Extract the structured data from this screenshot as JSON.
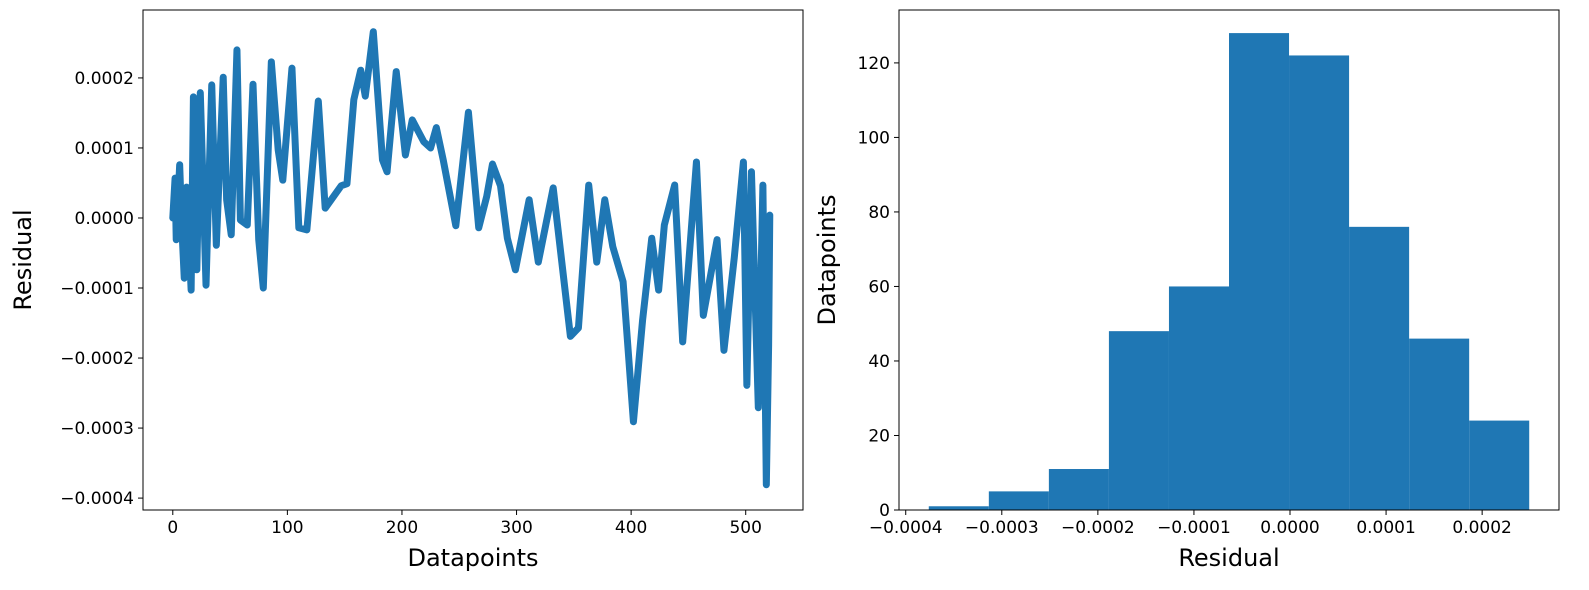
{
  "chart_data": [
    {
      "type": "line",
      "xlabel": "Datapoints",
      "ylabel": "Residual",
      "x": [
        0,
        2,
        3,
        6,
        8,
        10,
        12,
        16,
        18,
        21,
        24,
        29,
        34,
        38,
        44,
        47,
        51,
        56,
        59,
        65,
        70,
        75,
        79,
        86,
        92,
        96,
        104,
        110,
        117,
        127,
        133,
        147,
        152,
        158,
        164,
        168,
        175,
        183,
        187,
        195,
        203,
        209,
        219,
        225,
        230,
        236,
        247,
        258,
        267,
        274,
        279,
        286,
        292,
        299,
        311,
        319,
        332,
        347,
        354,
        363,
        370,
        377,
        384,
        393,
        402,
        410,
        418,
        424,
        429,
        438,
        445,
        457,
        463,
        475,
        481,
        490,
        498,
        501,
        505,
        511,
        515,
        518,
        520,
        521
      ],
      "series": [
        {
          "color": "#1f77b4",
          "values": [
            0,
            5.7e-05,
            -3.1e-05,
            7.6e-05,
            -1.7e-05,
            -8.6e-05,
            4.4e-05,
            -0.000103,
            0.000173,
            -7.4e-05,
            0.000179,
            -9.6e-05,
            0.00019,
            -3.9e-05,
            0.000201,
            2.6e-05,
            -2.4e-05,
            0.00024,
            -3e-06,
            -1e-05,
            0.000191,
            -3.1e-05,
            -0.0001,
            0.000223,
            9.7e-05,
            5.4e-05,
            0.000214,
            -1.4e-05,
            -1.7e-05,
            0.000167,
            1.4e-05,
            4.6e-05,
            4.9e-05,
            0.000169,
            0.000211,
            0.000174,
            0.000266,
            8.3e-05,
            6.6e-05,
            0.000209,
            9e-05,
            0.00014,
            0.000109,
            0.0001,
            0.000129,
            8.3e-05,
            -1.1e-05,
            0.000151,
            -1.4e-05,
            3.1e-05,
            7.7e-05,
            4.6e-05,
            -2.9e-05,
            -7.4e-05,
            2.6e-05,
            -6.3e-05,
            4.3e-05,
            -0.000169,
            -0.000157,
            4.7e-05,
            -6.3e-05,
            2.6e-05,
            -4.1e-05,
            -9.1e-05,
            -0.000291,
            -0.000146,
            -2.9e-05,
            -0.000103,
            -1e-05,
            4.7e-05,
            -0.000177,
            8e-05,
            -0.000139,
            -3.1e-05,
            -0.000189,
            -5.7e-05,
            8e-05,
            -0.000239,
            6.6e-05,
            -0.000271,
            4.7e-05,
            -0.000381,
            -0.000181,
            4e-06
          ]
        }
      ],
      "xlim": [
        -26,
        550
      ],
      "xticks": [
        0,
        100,
        200,
        300,
        400,
        500
      ],
      "ylim": [
        -0.000417,
        0.000297
      ],
      "yticks": [
        {
          "value": -0.0004,
          "label": "−0.0004"
        },
        {
          "value": -0.0003,
          "label": "−0.0003"
        },
        {
          "value": -0.0002,
          "label": "−0.0002"
        },
        {
          "value": -0.0001,
          "label": "−0.0001"
        },
        {
          "value": 0,
          "label": "0.0000"
        },
        {
          "value": 0.0001,
          "label": "0.0001"
        },
        {
          "value": 0.0002,
          "label": "0.0002"
        }
      ]
    },
    {
      "type": "histogram",
      "xlabel": "Residual",
      "ylabel": "Datapoints",
      "color": "#1f77b4",
      "bins": [
        -0.000376,
        -0.0003135,
        -0.000251,
        -0.0001885,
        -0.000126,
        -6.35e-05,
        -1e-06,
        6.15e-05,
        0.000124,
        0.0001865,
        0.000249
      ],
      "values": [
        1,
        5,
        11,
        48,
        60,
        128,
        122,
        76,
        46,
        24
      ],
      "xlim": [
        -0.000407,
        0.00028
      ],
      "xticks": [
        {
          "value": -0.0004,
          "label": "−0.0004"
        },
        {
          "value": -0.0003,
          "label": "−0.0003"
        },
        {
          "value": -0.0002,
          "label": "−0.0002"
        },
        {
          "value": -0.0001,
          "label": "−0.0001"
        },
        {
          "value": 0,
          "label": "0.0000"
        },
        {
          "value": 0.0001,
          "label": "0.0001"
        },
        {
          "value": 0.0002,
          "label": "0.0002"
        }
      ],
      "ylim": [
        0,
        134.2
      ],
      "yticks": [
        0,
        20,
        40,
        60,
        80,
        100,
        120
      ]
    }
  ]
}
